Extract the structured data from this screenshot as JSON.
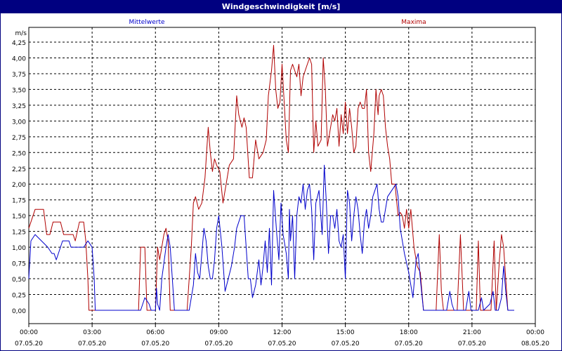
{
  "window": {
    "title": "Windgeschwindigkeit [m/s]"
  },
  "chart_data": {
    "type": "line",
    "title": "Windgeschwindigkeit [m/s]",
    "ylabel": "m/s",
    "xlabel": "",
    "ylim": [
      0,
      4.25
    ],
    "xlim_hours": [
      0,
      24
    ],
    "grid": true,
    "legend": [
      "Mittelwerte",
      "Maxima"
    ],
    "legend_placement": "top",
    "y_ticks": [
      "0,00",
      "0,25",
      "0,50",
      "0,75",
      "1,00",
      "1,25",
      "1,50",
      "1,75",
      "2,00",
      "2,25",
      "2,50",
      "2,75",
      "3,00",
      "3,25",
      "3,50",
      "3,75",
      "4,00",
      "4,25"
    ],
    "x_ticks": [
      {
        "time": "00:00",
        "date": "07.05.20"
      },
      {
        "time": "03:00",
        "date": "07.05.20"
      },
      {
        "time": "06:00",
        "date": "07.05.20"
      },
      {
        "time": "09:00",
        "date": "07.05.20"
      },
      {
        "time": "12:00",
        "date": "07.05.20"
      },
      {
        "time": "15:00",
        "date": "07.05.20"
      },
      {
        "time": "18:00",
        "date": "07.05.20"
      },
      {
        "time": "21:00",
        "date": "07.05.20"
      },
      {
        "time": "00:00",
        "date": "08.05.20"
      }
    ],
    "colors": {
      "Mittelwerte": "#0000cc",
      "Maxima": "#b00000",
      "grid": "#000000"
    },
    "series": [
      {
        "name": "Mittelwerte",
        "points": [
          [
            0.0,
            0.5
          ],
          [
            0.1,
            1.1
          ],
          [
            0.3,
            1.2
          ],
          [
            0.6,
            1.1
          ],
          [
            0.9,
            1.0
          ],
          [
            1.1,
            0.9
          ],
          [
            1.2,
            0.9
          ],
          [
            1.3,
            0.8
          ],
          [
            1.5,
            1.0
          ],
          [
            1.6,
            1.1
          ],
          [
            1.9,
            1.1
          ],
          [
            2.0,
            1.0
          ],
          [
            2.2,
            1.0
          ],
          [
            2.6,
            1.0
          ],
          [
            2.8,
            1.1
          ],
          [
            3.0,
            1.0
          ],
          [
            3.1,
            0.5
          ],
          [
            3.15,
            0.0
          ],
          [
            4.0,
            0.0
          ],
          [
            4.8,
            0.0
          ],
          [
            5.3,
            0.0
          ],
          [
            5.5,
            0.2
          ],
          [
            5.7,
            0.1
          ],
          [
            5.8,
            0.0
          ],
          [
            6.0,
            0.0
          ],
          [
            6.05,
            0.35
          ],
          [
            6.1,
            0.1
          ],
          [
            6.2,
            0.0
          ],
          [
            6.3,
            0.5
          ],
          [
            6.5,
            1.0
          ],
          [
            6.6,
            1.2
          ],
          [
            6.7,
            1.0
          ],
          [
            6.9,
            0.0
          ],
          [
            7.5,
            0.0
          ],
          [
            7.6,
            0.0
          ],
          [
            7.8,
            0.4
          ],
          [
            7.9,
            0.9
          ],
          [
            8.0,
            0.6
          ],
          [
            8.1,
            0.5
          ],
          [
            8.2,
            0.9
          ],
          [
            8.3,
            1.3
          ],
          [
            8.4,
            1.1
          ],
          [
            8.5,
            0.7
          ],
          [
            8.6,
            0.5
          ],
          [
            8.7,
            0.5
          ],
          [
            8.8,
            0.8
          ],
          [
            8.9,
            1.3
          ],
          [
            9.0,
            1.5
          ],
          [
            9.15,
            1.0
          ],
          [
            9.3,
            0.3
          ],
          [
            9.45,
            0.5
          ],
          [
            9.6,
            0.7
          ],
          [
            9.75,
            1.0
          ],
          [
            9.85,
            1.3
          ],
          [
            10.05,
            1.5
          ],
          [
            10.2,
            1.5
          ],
          [
            10.3,
            1.0
          ],
          [
            10.4,
            0.5
          ],
          [
            10.5,
            0.5
          ],
          [
            10.6,
            0.2
          ],
          [
            10.75,
            0.4
          ],
          [
            10.9,
            0.8
          ],
          [
            11.0,
            0.4
          ],
          [
            11.1,
            0.7
          ],
          [
            11.2,
            1.1
          ],
          [
            11.3,
            0.6
          ],
          [
            11.4,
            1.3
          ],
          [
            11.5,
            0.4
          ],
          [
            11.6,
            1.9
          ],
          [
            11.75,
            1.2
          ],
          [
            11.85,
            0.8
          ],
          [
            11.95,
            1.7
          ],
          [
            12.05,
            1.2
          ],
          [
            12.2,
            0.9
          ],
          [
            12.3,
            0.5
          ],
          [
            12.35,
            1.6
          ],
          [
            12.4,
            1.1
          ],
          [
            12.5,
            1.5
          ],
          [
            12.6,
            0.5
          ],
          [
            12.7,
            1.5
          ],
          [
            12.8,
            1.8
          ],
          [
            12.9,
            1.7
          ],
          [
            13.0,
            2.0
          ],
          [
            13.1,
            1.6
          ],
          [
            13.2,
            1.9
          ],
          [
            13.3,
            2.0
          ],
          [
            13.4,
            1.6
          ],
          [
            13.5,
            0.8
          ],
          [
            13.6,
            1.7
          ],
          [
            13.75,
            1.9
          ],
          [
            13.9,
            1.2
          ],
          [
            14.0,
            2.3
          ],
          [
            14.1,
            1.7
          ],
          [
            14.2,
            0.9
          ],
          [
            14.3,
            1.5
          ],
          [
            14.4,
            1.5
          ],
          [
            14.5,
            1.3
          ],
          [
            14.6,
            1.6
          ],
          [
            14.7,
            1.1
          ],
          [
            14.8,
            1.0
          ],
          [
            14.9,
            1.2
          ],
          [
            15.0,
            0.5
          ],
          [
            15.1,
            1.9
          ],
          [
            15.2,
            1.7
          ],
          [
            15.3,
            1.1
          ],
          [
            15.4,
            1.5
          ],
          [
            15.5,
            1.8
          ],
          [
            15.6,
            1.6
          ],
          [
            15.7,
            1.2
          ],
          [
            15.8,
            0.9
          ],
          [
            15.9,
            1.4
          ],
          [
            16.0,
            1.6
          ],
          [
            16.1,
            1.3
          ],
          [
            16.2,
            1.5
          ],
          [
            16.3,
            1.8
          ],
          [
            16.5,
            2.0
          ],
          [
            16.6,
            1.6
          ],
          [
            16.7,
            1.4
          ],
          [
            16.8,
            1.4
          ],
          [
            17.0,
            1.8
          ],
          [
            17.2,
            1.9
          ],
          [
            17.4,
            2.0
          ],
          [
            17.5,
            1.8
          ],
          [
            17.6,
            1.3
          ],
          [
            17.8,
            0.9
          ],
          [
            18.0,
            0.6
          ],
          [
            18.2,
            0.2
          ],
          [
            18.35,
            0.8
          ],
          [
            18.45,
            0.9
          ],
          [
            18.55,
            0.5
          ],
          [
            18.7,
            0.0
          ],
          [
            19.5,
            0.0
          ],
          [
            19.8,
            0.0
          ],
          [
            19.95,
            0.3
          ],
          [
            20.05,
            0.1
          ],
          [
            20.15,
            0.0
          ],
          [
            20.6,
            0.0
          ],
          [
            20.7,
            0.0
          ],
          [
            20.85,
            0.3
          ],
          [
            20.95,
            0.0
          ],
          [
            21.3,
            0.0
          ],
          [
            21.45,
            0.2
          ],
          [
            21.55,
            0.0
          ],
          [
            21.85,
            0.1
          ],
          [
            22.0,
            0.3
          ],
          [
            22.1,
            0.0
          ],
          [
            22.25,
            0.0
          ],
          [
            22.4,
            0.2
          ],
          [
            22.5,
            0.7
          ],
          [
            22.6,
            0.3
          ],
          [
            22.7,
            0.0
          ],
          [
            23.0,
            0.0
          ]
        ]
      },
      {
        "name": "Maxima",
        "points": [
          [
            0.0,
            1.3
          ],
          [
            0.1,
            1.4
          ],
          [
            0.3,
            1.6
          ],
          [
            0.5,
            1.6
          ],
          [
            0.7,
            1.6
          ],
          [
            0.85,
            1.2
          ],
          [
            1.0,
            1.2
          ],
          [
            1.15,
            1.4
          ],
          [
            1.3,
            1.4
          ],
          [
            1.5,
            1.4
          ],
          [
            1.65,
            1.2
          ],
          [
            1.8,
            1.2
          ],
          [
            2.1,
            1.2
          ],
          [
            2.2,
            1.1
          ],
          [
            2.4,
            1.4
          ],
          [
            2.6,
            1.4
          ],
          [
            2.7,
            1.1
          ],
          [
            2.75,
            0.8
          ],
          [
            2.8,
            0.5
          ],
          [
            2.85,
            0.0
          ],
          [
            3.5,
            0.0
          ],
          [
            4.5,
            0.0
          ],
          [
            5.2,
            0.0
          ],
          [
            5.3,
            1.0
          ],
          [
            5.5,
            1.0
          ],
          [
            5.6,
            0.0
          ],
          [
            6.0,
            0.0
          ],
          [
            6.1,
            1.0
          ],
          [
            6.2,
            0.8
          ],
          [
            6.4,
            1.2
          ],
          [
            6.5,
            1.3
          ],
          [
            6.6,
            1.1
          ],
          [
            6.7,
            0.0
          ],
          [
            7.0,
            0.0
          ],
          [
            7.5,
            0.0
          ],
          [
            7.7,
            1.0
          ],
          [
            7.8,
            1.7
          ],
          [
            7.9,
            1.8
          ],
          [
            8.05,
            1.6
          ],
          [
            8.2,
            1.7
          ],
          [
            8.35,
            2.1
          ],
          [
            8.5,
            2.9
          ],
          [
            8.6,
            2.5
          ],
          [
            8.7,
            2.2
          ],
          [
            8.8,
            2.4
          ],
          [
            8.9,
            2.3
          ],
          [
            9.05,
            2.2
          ],
          [
            9.2,
            1.7
          ],
          [
            9.35,
            2.0
          ],
          [
            9.5,
            2.3
          ],
          [
            9.7,
            2.4
          ],
          [
            9.85,
            3.4
          ],
          [
            9.95,
            3.1
          ],
          [
            10.1,
            2.9
          ],
          [
            10.2,
            3.05
          ],
          [
            10.3,
            2.9
          ],
          [
            10.45,
            2.1
          ],
          [
            10.6,
            2.1
          ],
          [
            10.75,
            2.7
          ],
          [
            10.9,
            2.4
          ],
          [
            11.1,
            2.5
          ],
          [
            11.25,
            2.7
          ],
          [
            11.35,
            3.4
          ],
          [
            11.5,
            3.8
          ],
          [
            11.6,
            4.2
          ],
          [
            11.7,
            3.5
          ],
          [
            11.8,
            3.2
          ],
          [
            11.9,
            3.3
          ],
          [
            12.0,
            3.9
          ],
          [
            12.1,
            3.3
          ],
          [
            12.2,
            2.7
          ],
          [
            12.3,
            2.5
          ],
          [
            12.4,
            3.8
          ],
          [
            12.5,
            3.9
          ],
          [
            12.6,
            3.8
          ],
          [
            12.7,
            3.7
          ],
          [
            12.8,
            3.9
          ],
          [
            12.9,
            3.4
          ],
          [
            13.0,
            3.7
          ],
          [
            13.1,
            3.8
          ],
          [
            13.2,
            3.9
          ],
          [
            13.3,
            4.0
          ],
          [
            13.4,
            3.9
          ],
          [
            13.5,
            2.5
          ],
          [
            13.6,
            3.0
          ],
          [
            13.7,
            2.6
          ],
          [
            13.85,
            2.7
          ],
          [
            13.95,
            4.0
          ],
          [
            14.05,
            3.5
          ],
          [
            14.15,
            2.6
          ],
          [
            14.3,
            2.9
          ],
          [
            14.4,
            3.1
          ],
          [
            14.5,
            3.0
          ],
          [
            14.6,
            3.2
          ],
          [
            14.7,
            2.6
          ],
          [
            14.8,
            3.1
          ],
          [
            14.9,
            2.8
          ],
          [
            15.0,
            3.3
          ],
          [
            15.1,
            2.8
          ],
          [
            15.2,
            3.2
          ],
          [
            15.3,
            2.9
          ],
          [
            15.4,
            2.5
          ],
          [
            15.5,
            2.6
          ],
          [
            15.6,
            3.2
          ],
          [
            15.7,
            3.3
          ],
          [
            15.8,
            3.2
          ],
          [
            15.9,
            3.2
          ],
          [
            16.0,
            3.5
          ],
          [
            16.1,
            2.5
          ],
          [
            16.2,
            2.2
          ],
          [
            16.35,
            2.8
          ],
          [
            16.45,
            3.5
          ],
          [
            16.55,
            3.1
          ],
          [
            16.6,
            3.4
          ],
          [
            16.7,
            3.5
          ],
          [
            16.8,
            3.4
          ],
          [
            16.9,
            2.9
          ],
          [
            17.0,
            2.6
          ],
          [
            17.1,
            2.4
          ],
          [
            17.2,
            2.0
          ],
          [
            17.35,
            2.0
          ],
          [
            17.5,
            1.5
          ],
          [
            17.6,
            1.55
          ],
          [
            17.7,
            1.5
          ],
          [
            17.8,
            1.3
          ],
          [
            17.9,
            1.6
          ],
          [
            18.0,
            1.3
          ],
          [
            18.1,
            1.6
          ],
          [
            18.25,
            1.0
          ],
          [
            18.4,
            0.7
          ],
          [
            18.55,
            0.6
          ],
          [
            18.7,
            0.0
          ],
          [
            19.0,
            0.0
          ],
          [
            19.3,
            0.0
          ],
          [
            19.45,
            1.2
          ],
          [
            19.55,
            0.3
          ],
          [
            19.65,
            0.0
          ],
          [
            20.3,
            0.0
          ],
          [
            20.45,
            1.2
          ],
          [
            20.6,
            0.0
          ],
          [
            20.8,
            0.0
          ],
          [
            21.2,
            0.0
          ],
          [
            21.3,
            1.1
          ],
          [
            21.4,
            0.0
          ],
          [
            21.9,
            0.0
          ],
          [
            22.05,
            1.1
          ],
          [
            22.15,
            0.0
          ],
          [
            22.3,
            0.8
          ],
          [
            22.4,
            1.2
          ],
          [
            22.5,
            1.0
          ],
          [
            22.6,
            0.5
          ],
          [
            22.7,
            0.0
          ],
          [
            23.0,
            0.0
          ]
        ]
      }
    ]
  }
}
